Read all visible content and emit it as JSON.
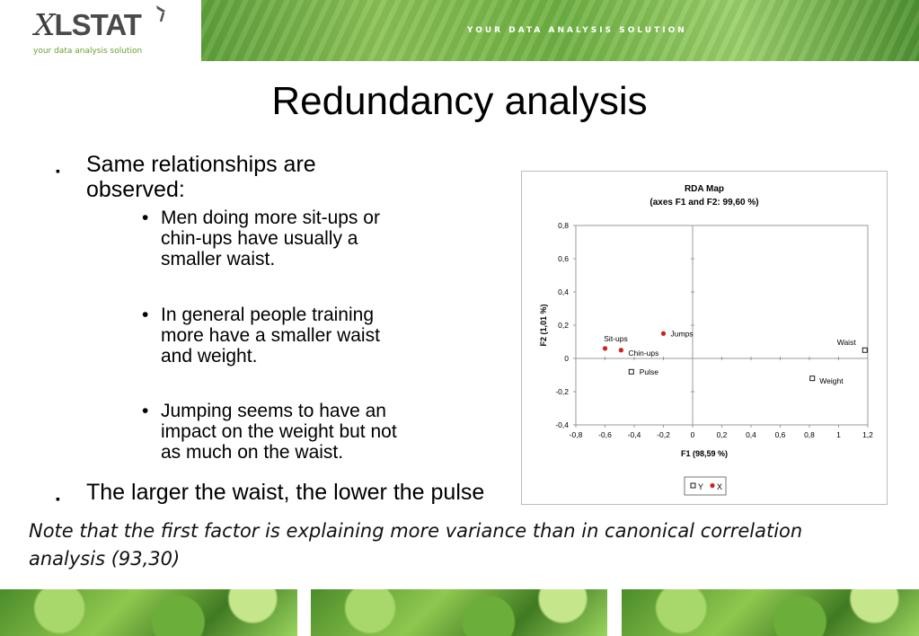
{
  "header": {
    "logo_text": "LSTAT",
    "logo_x": "X",
    "logo_tagline": "your data analysis solution",
    "banner_text": "YOUR DATA ANALYSIS SOLUTION"
  },
  "slide": {
    "title": "Redundancy analysis",
    "bullets": [
      {
        "lines": [
          "Same relationships are",
          "observed:"
        ],
        "sub": [
          {
            "lines": [
              "Men doing more sit-ups or",
              "chin-ups have usually a",
              "smaller waist."
            ]
          },
          {
            "lines": [
              "In general people training",
              "more have a smaller waist",
              "and weight."
            ]
          },
          {
            "lines": [
              "Jumping seems to have an",
              "impact on the weight but not",
              "as much on the waist."
            ]
          }
        ]
      },
      {
        "lines": [
          "The larger the waist, the lower the pulse"
        ],
        "sub": []
      }
    ],
    "note": "Note that the first factor is explaining more variance than in canonical correlation analysis (93,30)"
  },
  "chart_data": {
    "type": "scatter",
    "title": "RDA Map",
    "subtitle": "(axes F1 and F2: 99,60 %)",
    "xlabel": "F1 (98,59 %)",
    "ylabel": "F2 (1,01 %)",
    "xlim": [
      -0.8,
      1.2
    ],
    "ylim": [
      -0.4,
      0.8
    ],
    "xticks": [
      "-0,8",
      "-0,6",
      "-0,4",
      "-0,2",
      "0",
      "0,2",
      "0,4",
      "0,6",
      "0,8",
      "1",
      "1,2"
    ],
    "yticks": [
      "0,8",
      "0,6",
      "0,4",
      "0,2",
      "0",
      "-0,2",
      "-0,4"
    ],
    "legend_placement": "bottom",
    "series": [
      {
        "name": "Y",
        "marker": "open-square",
        "color": "#000000",
        "points": [
          {
            "label": "Waist",
            "x": 1.18,
            "y": 0.05
          },
          {
            "label": "Weight",
            "x": 0.82,
            "y": -0.12
          },
          {
            "label": "Pulse",
            "x": -0.42,
            "y": -0.08
          }
        ]
      },
      {
        "name": "X",
        "marker": "filled-circle",
        "color": "#d62020",
        "points": [
          {
            "label": "Sit-ups",
            "x": -0.6,
            "y": 0.06
          },
          {
            "label": "Chin-ups",
            "x": -0.49,
            "y": 0.05
          },
          {
            "label": "Jumps",
            "x": -0.2,
            "y": 0.15
          }
        ]
      }
    ]
  }
}
